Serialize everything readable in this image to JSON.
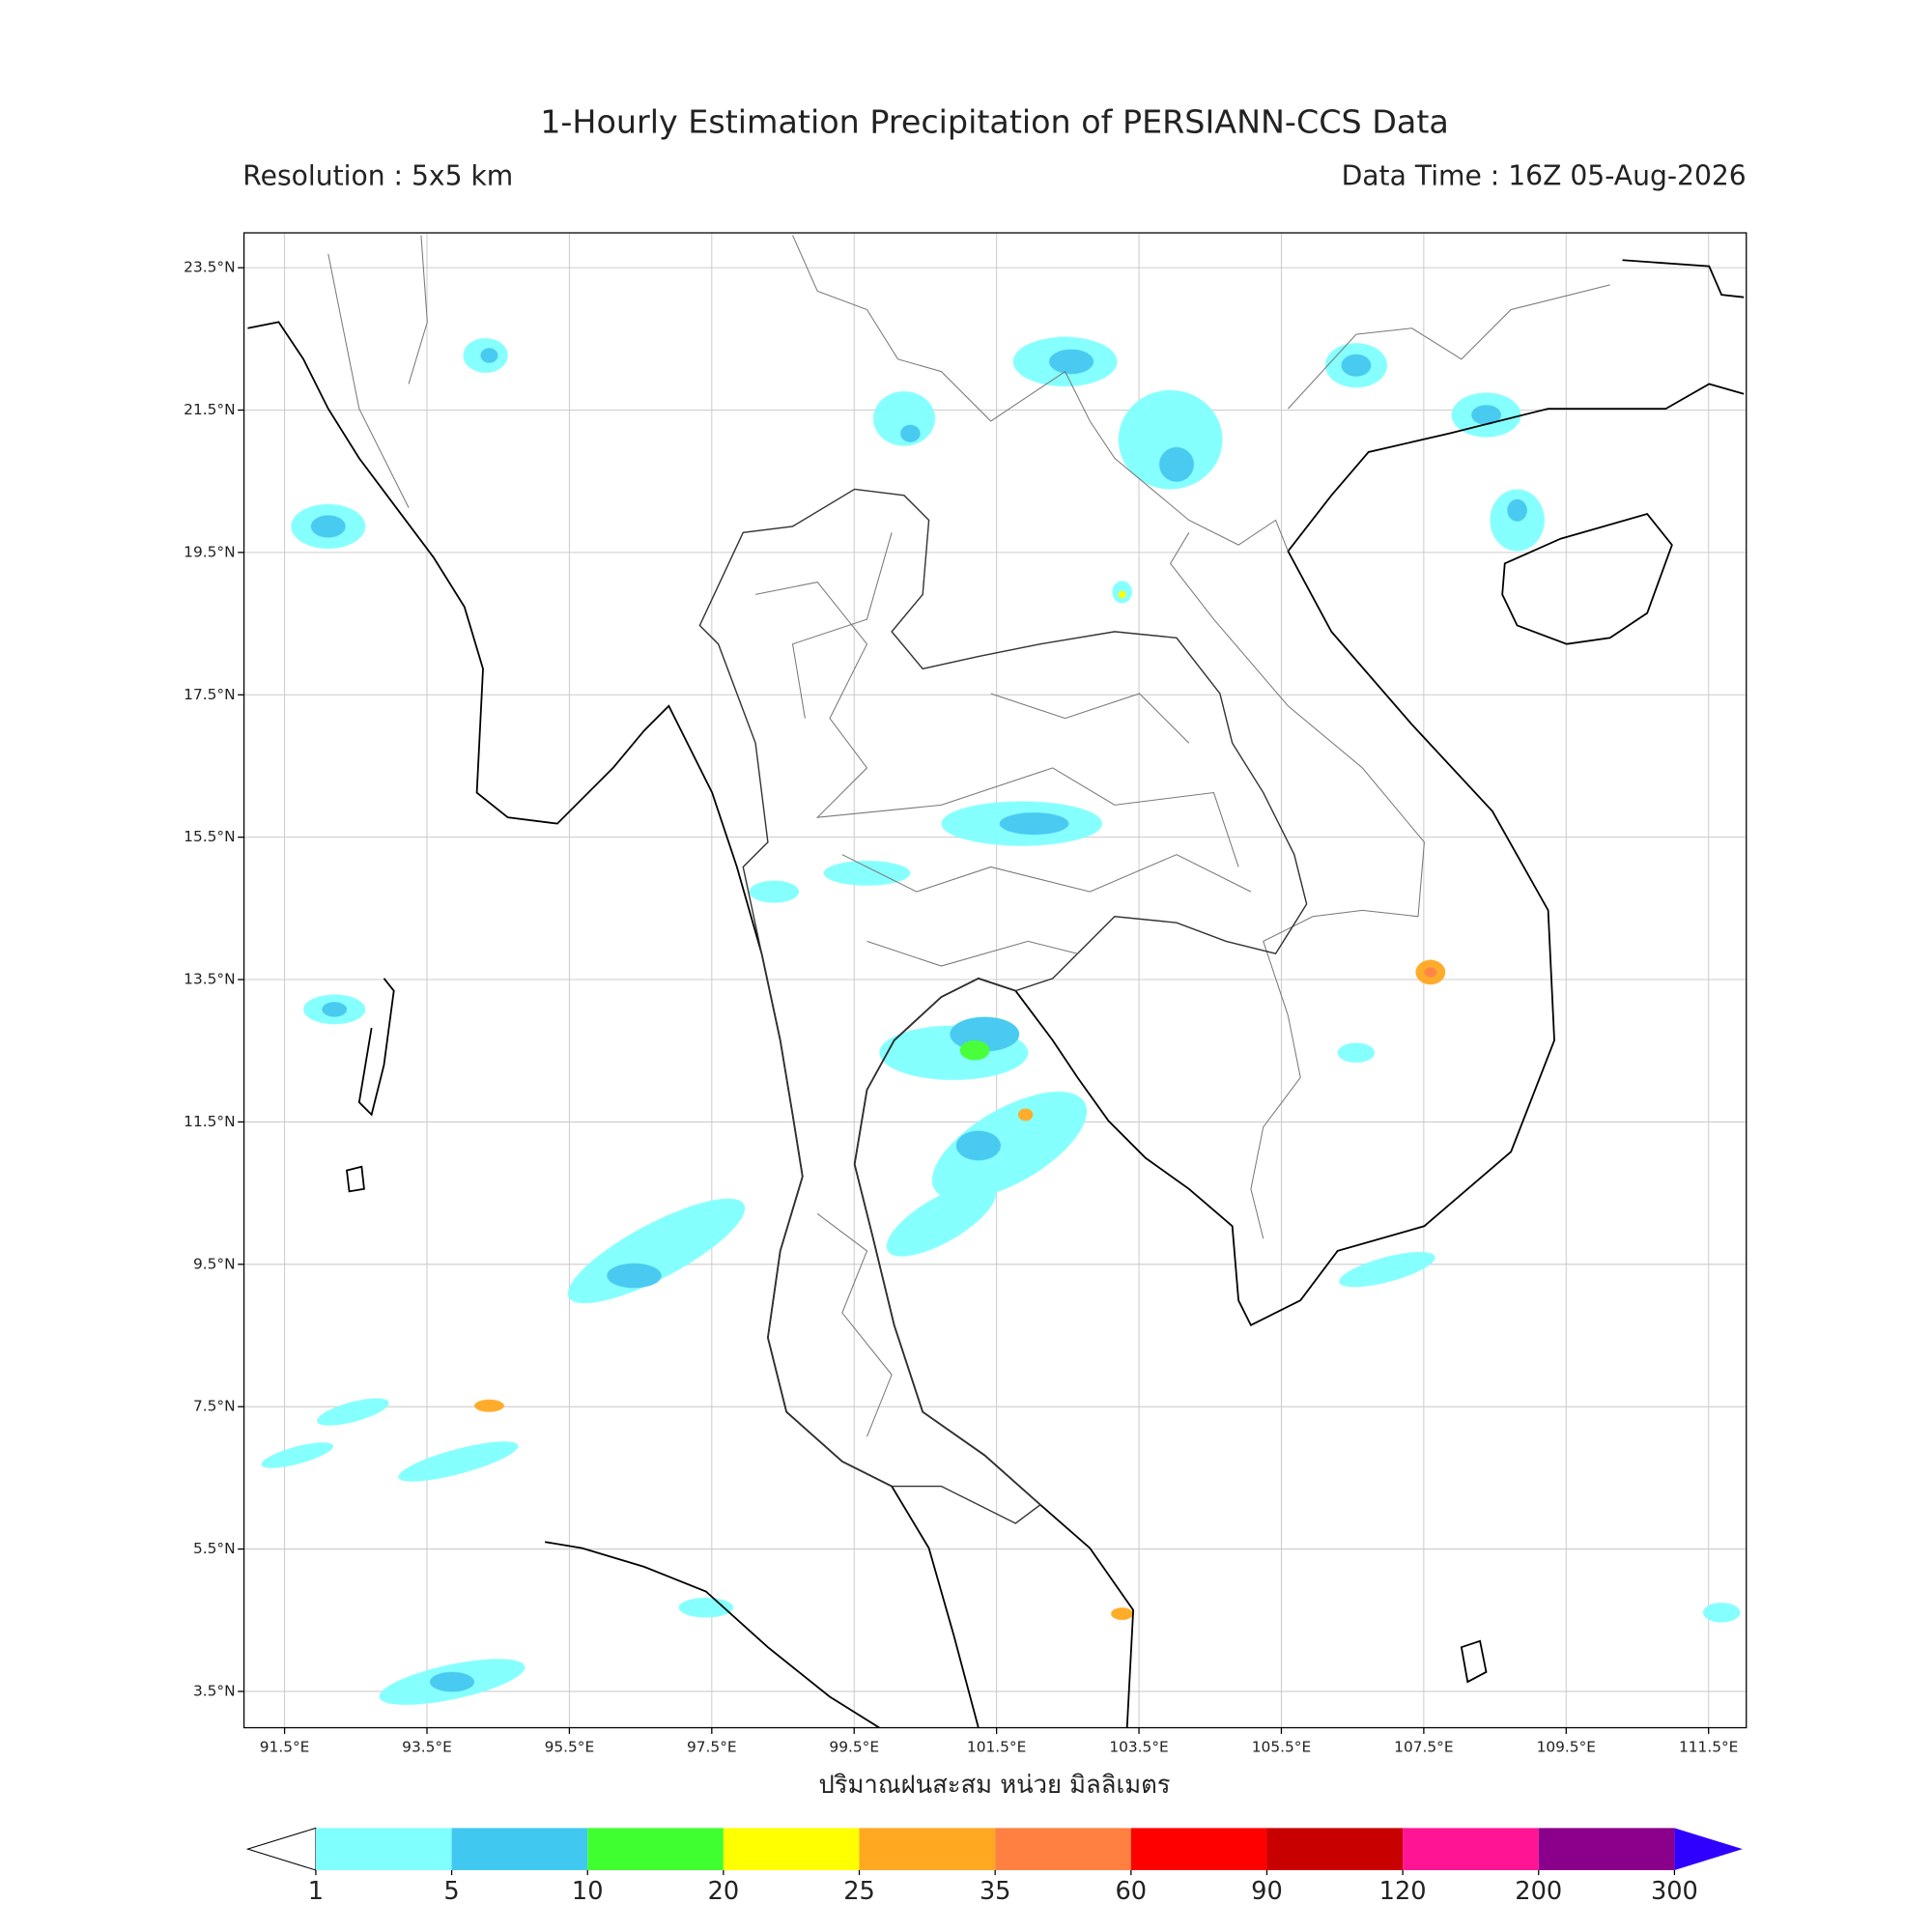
{
  "title": "1-Hourly Estimation Precipitation of PERSIANN-CCS Data",
  "resolution": "Resolution : 5x5 km",
  "data_time": "Data Time : 16Z 05-Aug-2026",
  "map": {
    "xlim": [
      90.93,
      112.03
    ],
    "ylim": [
      2.99,
      23.99
    ],
    "xticks": [
      {
        "value": 91.5,
        "label": "91.5°E"
      },
      {
        "value": 93.5,
        "label": "93.5°E"
      },
      {
        "value": 95.5,
        "label": "95.5°E"
      },
      {
        "value": 97.5,
        "label": "97.5°E"
      },
      {
        "value": 99.5,
        "label": "99.5°E"
      },
      {
        "value": 101.5,
        "label": "101.5°E"
      },
      {
        "value": 103.5,
        "label": "103.5°E"
      },
      {
        "value": 105.5,
        "label": "105.5°E"
      },
      {
        "value": 107.5,
        "label": "107.5°E"
      },
      {
        "value": 109.5,
        "label": "109.5°E"
      },
      {
        "value": 111.5,
        "label": "111.5°E"
      }
    ],
    "yticks": [
      {
        "value": 3.5,
        "label": "3.5°N"
      },
      {
        "value": 5.5,
        "label": "5.5°N"
      },
      {
        "value": 7.5,
        "label": "7.5°N"
      },
      {
        "value": 9.5,
        "label": "9.5°N"
      },
      {
        "value": 11.5,
        "label": "11.5°N"
      },
      {
        "value": 13.5,
        "label": "13.5°N"
      },
      {
        "value": 15.5,
        "label": "15.5°N"
      },
      {
        "value": 17.5,
        "label": "17.5°N"
      },
      {
        "value": 19.5,
        "label": "19.5°N"
      },
      {
        "value": 21.5,
        "label": "21.5°N"
      },
      {
        "value": 23.5,
        "label": "23.5°N"
      }
    ],
    "grid": true,
    "xlabel": "ปริมาณฝนสะสม หน่วย มิลลิเมตร"
  },
  "colorbar": {
    "bounds": [
      1,
      5,
      10,
      20,
      25,
      35,
      60,
      90,
      120,
      200,
      300
    ],
    "colors": [
      "#80ffff",
      "#40c8f0",
      "#40ff30",
      "#ffff00",
      "#ffa820",
      "#ff8040",
      "#ff0000",
      "#c80000",
      "#ff1493",
      "#8b008b"
    ],
    "under_color": "#ffffff",
    "over_color": "#3000ff"
  }
}
